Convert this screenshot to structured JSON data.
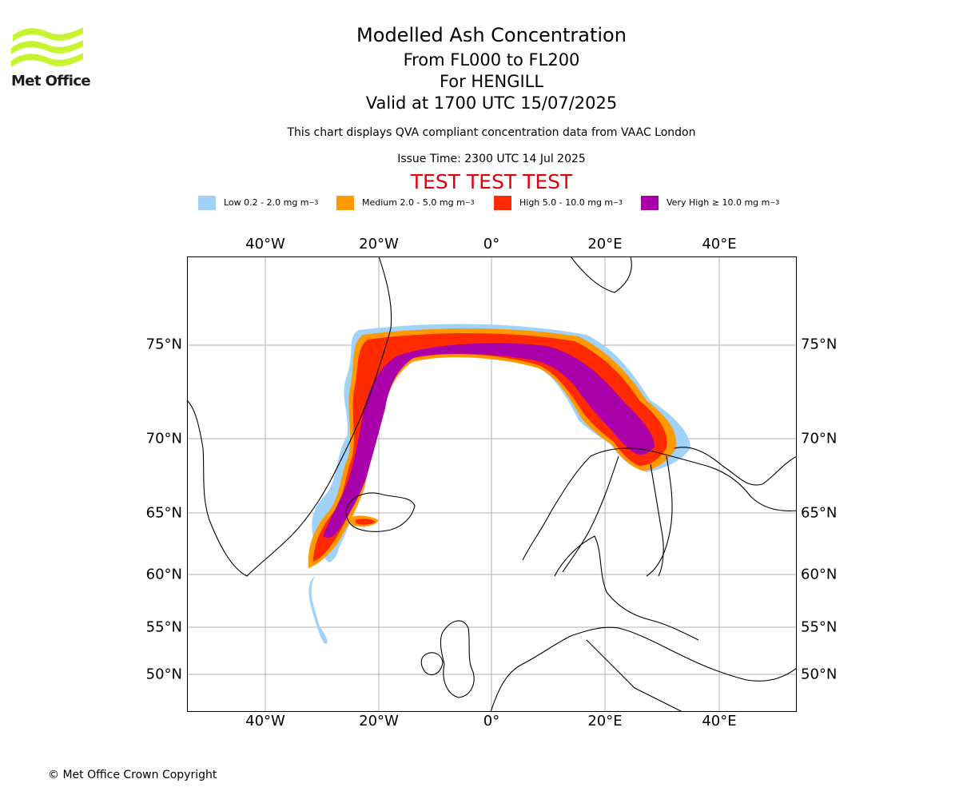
{
  "logo": {
    "text": "Met Office",
    "color": "#c6f431"
  },
  "header": {
    "title": "Modelled Ash Concentration",
    "level_range": "From FL000 to FL200",
    "volcano": "For HENGILL",
    "valid_time": "Valid at 1700 UTC 15/07/2025",
    "disclaimer": "This chart displays QVA compliant concentration data from VAAC London",
    "issue_time": "Issue Time: 2300 UTC 14 Jul 2025",
    "test_banner": "TEST TEST TEST"
  },
  "legend": [
    {
      "label": "Low 0.2 - 2.0 mg m",
      "unit_exp": "−3",
      "color": "#a0d2fa"
    },
    {
      "label": "Medium 2.0 - 5.0 mg m",
      "unit_exp": "−3",
      "color": "#ff9900"
    },
    {
      "label": "High 5.0 - 10.0 mg m",
      "unit_exp": "−3",
      "color": "#ff2a00"
    },
    {
      "label": "Very High  ≥  10.0 mg m",
      "unit_exp": "−3",
      "color": "#aa00aa"
    }
  ],
  "map": {
    "longitude_labels": [
      "40°W",
      "20°W",
      "0°",
      "20°E",
      "40°E"
    ],
    "latitude_labels": [
      "75°N",
      "70°N",
      "65°N",
      "60°N",
      "55°N",
      "50°N"
    ]
  },
  "footer": {
    "copyright": "© Met Office Crown Copyright"
  }
}
